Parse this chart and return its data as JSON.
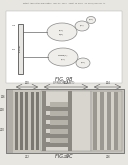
{
  "bg_color": "#e8e6e0",
  "header_text": "Patent Application Publication   May 22, 2012   Sheet 19 of 64   US 2012/0120007 A1",
  "fig_a_label": "FIG. 9B",
  "fig_a_sub": "(PRIOR ART)",
  "fig_b_label": "FIG. 9C",
  "top_bg": "#f2f0eb",
  "panel_white": "#ffffff",
  "bar_color": "#d8d5ce",
  "bar_edge": "#888888",
  "circle_edge": "#888888",
  "circle_face": "#f0eeea",
  "bottom_bg": "#c8c5bc",
  "stripe_dark": "#7a7870",
  "stripe_light": "#d0cdc5",
  "mid_bg": "#d5d2ca",
  "mid_dark": "#8a8880",
  "right_bg": "#c5c2ba",
  "right_stripe": "#9a9890"
}
